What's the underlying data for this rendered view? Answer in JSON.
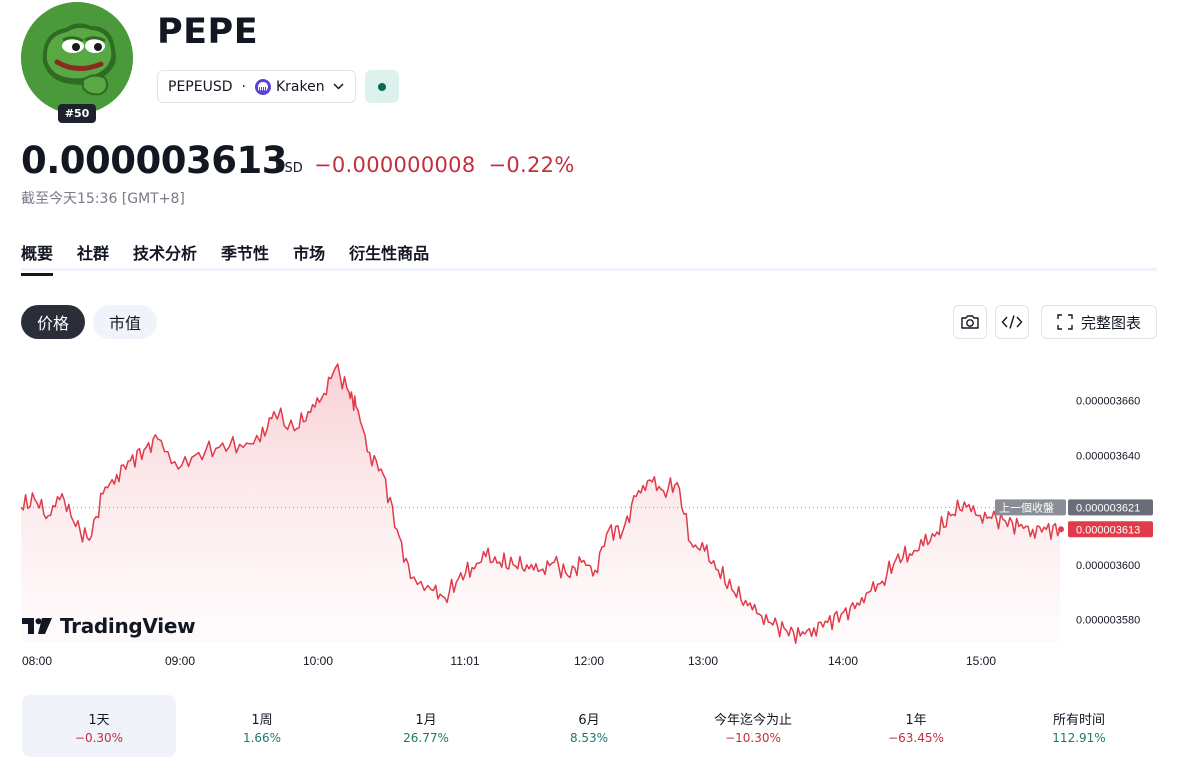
{
  "header": {
    "avatar_rank": "#50",
    "title": "PEPE",
    "symbol": "PEPEUSD",
    "separator": "·",
    "exchange": "Kraken",
    "status_color": "#0a6b50"
  },
  "quote": {
    "price": "0.000003613",
    "currency": "USD",
    "change_abs": "−0.000000008",
    "change_pct": "−0.22%",
    "as_of": "截至今天15:36 [GMT+8]",
    "change_color": "#c2303e"
  },
  "tabs": [
    "概要",
    "社群",
    "技术分析",
    "季节性",
    "市场",
    "衍生性商品"
  ],
  "chart_toggle": {
    "active": "价格",
    "inactive": "市值"
  },
  "toolbar": {
    "camera_icon": "camera-icon",
    "embed_icon": "code-icon",
    "fullscreen_label": "完整图表"
  },
  "branding": {
    "logo_text": "TradingView"
  },
  "chart_data": {
    "type": "area",
    "x_ticks": [
      "08:00",
      "09:00",
      "10:00",
      "11:01",
      "12:00",
      "13:00",
      "14:00",
      "15:00"
    ],
    "y_ticks": [
      "0.000003660",
      "0.000003640",
      "0.000003600",
      "0.000003580"
    ],
    "ylim": [
      3.5718e-06,
      3.6785e-06
    ],
    "previous_close_label": "上一個收盤",
    "previous_close_value": "0.000003621",
    "last_value_label": "0.000003613",
    "line_color": "#e03b4a",
    "x_hours": [
      0,
      0.1,
      0.2,
      0.3,
      0.4,
      0.5,
      0.6,
      0.7,
      0.8,
      0.9,
      1.0,
      1.15,
      1.3,
      1.45,
      1.6,
      1.75,
      1.85,
      2.0,
      2.1,
      2.2,
      2.3,
      2.4,
      2.45,
      2.55,
      2.65,
      2.75,
      2.85,
      3.0,
      3.1,
      3.2,
      3.3,
      3.4,
      3.5,
      3.6,
      3.7,
      3.8,
      3.9,
      4.0,
      4.1,
      4.2,
      4.3,
      4.4,
      4.5,
      4.6,
      4.7,
      4.8,
      4.9,
      5.0,
      5.1,
      5.2,
      5.3,
      5.4,
      5.5,
      5.6,
      5.7,
      5.8,
      5.9,
      6.0,
      6.1,
      6.2,
      6.3,
      6.4,
      6.5,
      6.6,
      6.7,
      6.8,
      6.9,
      7.0,
      7.1,
      7.2,
      7.3,
      7.4,
      7.5,
      7.6
    ],
    "values": [
      3.621e-06,
      3.624e-06,
      3.618e-06,
      3.626e-06,
      3.614e-06,
      3.609e-06,
      3.626e-06,
      3.633e-06,
      3.638e-06,
      3.642e-06,
      3.646e-06,
      3.635e-06,
      3.641e-06,
      3.643e-06,
      3.644e-06,
      3.645e-06,
      3.656e-06,
      3.649e-06,
      3.656e-06,
      3.661e-06,
      3.672e-06,
      3.663e-06,
      3.658e-06,
      3.641e-06,
      3.633e-06,
      3.613e-06,
      3.595e-06,
      3.591e-06,
      3.588e-06,
      3.595e-06,
      3.599e-06,
      3.603e-06,
      3.601e-06,
      3.6e-06,
      3.6e-06,
      3.598e-06,
      3.601e-06,
      3.596e-06,
      3.601e-06,
      3.598e-06,
      3.613e-06,
      3.612e-06,
      3.625e-06,
      3.631e-06,
      3.627e-06,
      3.63e-06,
      3.608e-06,
      3.605e-06,
      3.598e-06,
      3.591e-06,
      3.587e-06,
      3.582e-06,
      3.578e-06,
      3.576e-06,
      3.574e-06,
      3.577e-06,
      3.579e-06,
      3.582e-06,
      3.584e-06,
      3.59e-06,
      3.594e-06,
      3.602e-06,
      3.604e-06,
      3.607e-06,
      3.612e-06,
      3.618e-06,
      3.623e-06,
      3.618e-06,
      3.617e-06,
      3.616e-06,
      3.614e-06,
      3.613e-06,
      3.613e-06,
      3.613e-06
    ]
  },
  "periods": [
    {
      "label": "1天",
      "value": "−0.30%",
      "dir": "neg"
    },
    {
      "label": "1周",
      "value": "1.66%",
      "dir": "pos"
    },
    {
      "label": "1月",
      "value": "26.77%",
      "dir": "pos"
    },
    {
      "label": "6月",
      "value": "8.53%",
      "dir": "pos"
    },
    {
      "label": "今年迄今为止",
      "value": "−10.30%",
      "dir": "neg"
    },
    {
      "label": "1年",
      "value": "−63.45%",
      "dir": "neg"
    },
    {
      "label": "所有时间",
      "value": "112.91%",
      "dir": "pos"
    }
  ]
}
